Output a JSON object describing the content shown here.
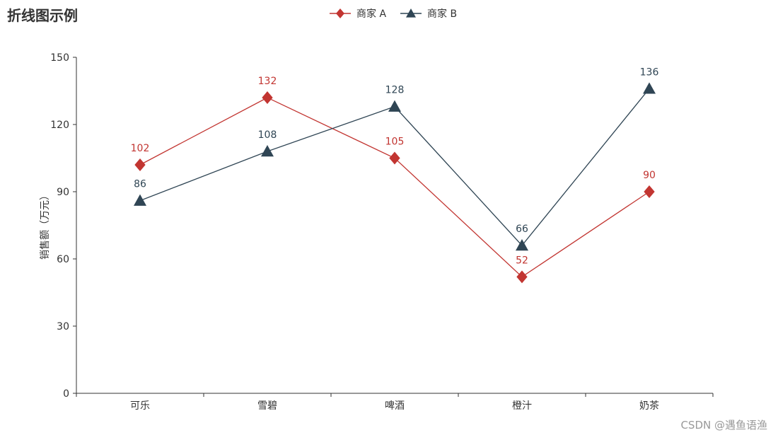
{
  "chart_data": {
    "type": "line",
    "title": "折线图示例",
    "categories": [
      "可乐",
      "雪碧",
      "啤酒",
      "橙汁",
      "奶茶"
    ],
    "series": [
      {
        "name": "商家 A",
        "color": "#c23531",
        "symbol": "diamond",
        "values": [
          102,
          132,
          105,
          52,
          90
        ]
      },
      {
        "name": "商家 B",
        "color": "#2f4554",
        "symbol": "triangle",
        "values": [
          86,
          108,
          128,
          66,
          136
        ]
      }
    ],
    "ylabel": "销售额（万元）",
    "ylim": [
      0,
      150
    ],
    "yticks": [
      0,
      30,
      60,
      90,
      120,
      150
    ],
    "grid": false,
    "watermark": "CSDN @遇鱼语渔"
  }
}
